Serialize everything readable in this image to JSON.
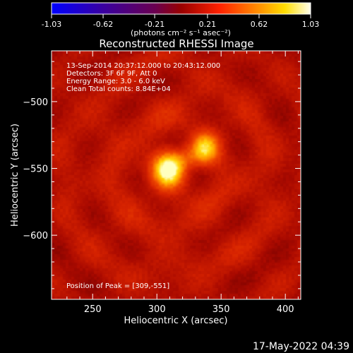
{
  "chart_data": {
    "type": "heatmap",
    "title": "Reconstructed RHESSI Image",
    "xlabel": "Heliocentric X (arcsec)",
    "ylabel": "Heliocentric Y (arcsec)",
    "xlim": [
      218,
      412
    ],
    "ylim": [
      -648,
      -462
    ],
    "x_ticks": [
      250,
      300,
      350,
      400
    ],
    "y_ticks": [
      -500,
      -550,
      -600
    ],
    "colorbar": {
      "range": [
        -1.03,
        1.03
      ],
      "ticks": [
        -1.03,
        -0.62,
        -0.21,
        0.21,
        0.62,
        1.03
      ],
      "colormap": "heat",
      "unit_label": "(photons cm⁻² s⁻¹ asec⁻²)"
    },
    "annotations": [
      "13-Sep-2014 20:37:12.000 to 20:43:12.000",
      "Detectors: 3F 6F 9F, Att 0",
      "Energy Range: 3.0 - 6.0 keV",
      "Clean     Total counts: 8.84E+04"
    ],
    "peak_label": "Position of Peak = [309,-551]",
    "peak": {
      "x": 309,
      "y": -551,
      "value": 1.03
    },
    "sources": [
      {
        "x": 309,
        "y": -551,
        "amplitude": 1.0
      },
      {
        "x": 337,
        "y": -534,
        "amplitude": 0.68
      }
    ]
  },
  "footer": {
    "timestamp": "17-May-2022 04:39"
  }
}
